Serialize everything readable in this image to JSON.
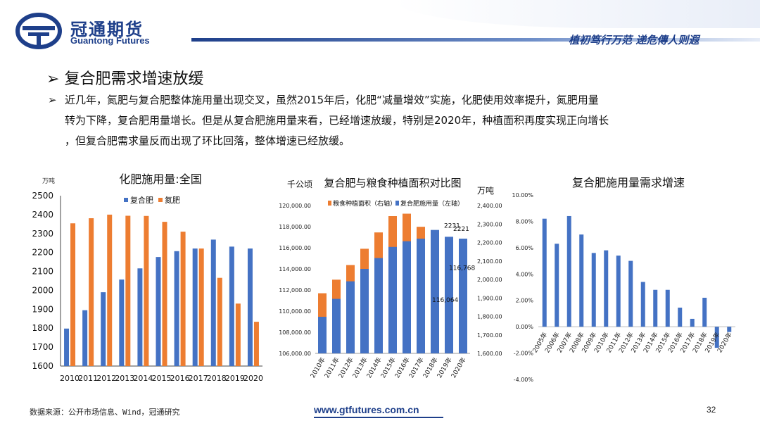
{
  "header": {
    "company_cn": "冠通期货",
    "company_en": "Guantong Futures",
    "slogan": "植初笃行万范 递危傳人则遐"
  },
  "section": {
    "title": "复合肥需求增速放缓",
    "paragraph_lines": [
      "近几年，氮肥与复合肥整体施用量出现交叉，虽然2015年后，化肥“减量增效”实施，化肥使用效率提升，氮肥用量",
      "转为下降，复合肥用量增长。但是从复合肥施用量来看，已经增速放缓，特别是2020年，种植面积再度实现正向增长",
      "，但复合肥需求量反而出现了环比回落，整体增速已经放缓。"
    ]
  },
  "footer": {
    "source": "数据来源：公开市场信息、Wind，冠通研究",
    "website": "www.gtfutures.com.cn",
    "page_number": "32"
  },
  "colors": {
    "blue": "#4472c4",
    "orange": "#ed7d31",
    "navy": "#1e3f8a"
  },
  "chart_data": [
    {
      "type": "bar",
      "title": "化肥施用量:全国",
      "unit": "万吨",
      "categories": [
        "2010",
        "2011",
        "2012",
        "2013",
        "2014",
        "2015",
        "2016",
        "2017",
        "2018",
        "2019",
        "2020"
      ],
      "series": [
        {
          "name": "复合肥",
          "color": "#4472c4",
          "values": [
            1798,
            1895,
            1990,
            2057,
            2116,
            2176,
            2207,
            2221,
            2268,
            2231,
            2221
          ]
        },
        {
          "name": "氮肥",
          "color": "#ed7d31",
          "values": [
            2354,
            2381,
            2400,
            2394,
            2393,
            2362,
            2310,
            2221,
            2066,
            1930,
            1834
          ]
        }
      ],
      "ylim": [
        1600,
        2500
      ],
      "yticks": [
        "2500",
        "2400",
        "2300",
        "2200",
        "2100",
        "2000",
        "1900",
        "1800",
        "1700",
        "1600"
      ],
      "legend": "top"
    },
    {
      "type": "bar",
      "title": "复合肥与粮食种植面积对比图",
      "left_unit": "千公顷",
      "right_unit": "万吨",
      "categories": [
        "2010年",
        "2011年",
        "2012年",
        "2013年",
        "2014年",
        "2015年",
        "2016年",
        "2017年",
        "2018年",
        "2019年",
        "2020年"
      ],
      "series": [
        {
          "name": "粮食种植面积（右轴）",
          "color": "#ed7d31",
          "values": [
            111695,
            112980,
            114368,
            115908,
            117455,
            119000,
            119230,
            117989,
            117038,
            116064,
            116768
          ]
        },
        {
          "name": "复合肥施用量（左轴）",
          "color": "#4472c4",
          "values": [
            1798,
            1895,
            1990,
            2057,
            2116,
            2176,
            2207,
            2221,
            2268,
            2231,
            2221
          ]
        }
      ],
      "ylim_left": [
        106000,
        120000
      ],
      "ylim_right": [
        1600,
        2400
      ],
      "yticks_left": [
        "120,000.00",
        "118,000.00",
        "116,000.00",
        "114,000.00",
        "112,000.00",
        "110,000.00",
        "108,000.00",
        "106,000.00"
      ],
      "yticks_right": [
        "2,400.00",
        "2,300.00",
        "2,200.00",
        "2,100.00",
        "2,000.00",
        "1,900.00",
        "1,800.00",
        "1,700.00",
        "1,600.00"
      ],
      "annotations": [
        "2231",
        "2221",
        "116,768",
        "116,064"
      ],
      "legend": "top"
    },
    {
      "type": "bar",
      "title": "复合肥施用量需求增速",
      "categories": [
        "2005年",
        "2006年",
        "2007年",
        "2008年",
        "2009年",
        "2010年",
        "2011年",
        "2012年",
        "2013年",
        "2014年",
        "2015年",
        "2016年",
        "2017年",
        "2018年",
        "2019年",
        "2020年"
      ],
      "series": [
        {
          "name": "增速",
          "color": "#4472c4",
          "values": [
            8.2,
            6.3,
            8.4,
            7.0,
            5.6,
            5.8,
            5.4,
            5.0,
            3.4,
            2.8,
            2.8,
            1.45,
            0.6,
            2.2,
            -1.6,
            -0.4
          ]
        }
      ],
      "ylim": [
        -4,
        10
      ],
      "yticks": [
        "10.00%",
        "8.00%",
        "6.00%",
        "4.00%",
        "2.00%",
        "0.00%",
        "-2.00%",
        "-4.00%"
      ]
    }
  ]
}
